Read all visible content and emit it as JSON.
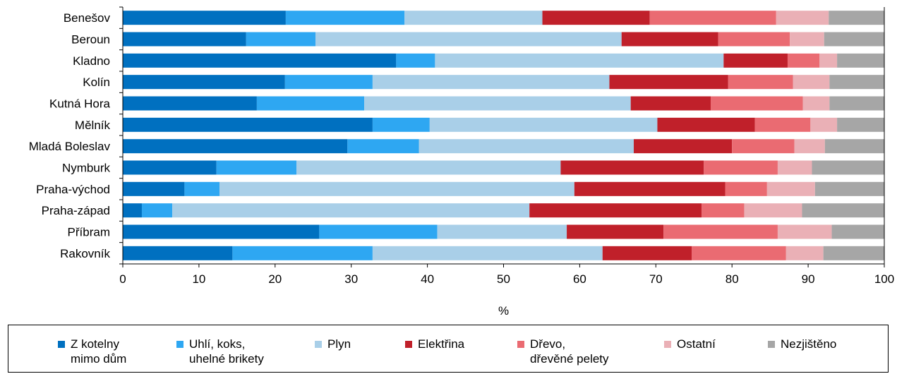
{
  "chart_data": {
    "type": "bar",
    "orientation": "horizontal",
    "stacked": true,
    "xlabel": "%",
    "xlim": [
      0,
      100
    ],
    "x_ticks": [
      "0",
      "10",
      "20",
      "30",
      "40",
      "50",
      "60",
      "70",
      "80",
      "90",
      "100"
    ],
    "grid": false,
    "legend_position": "bottom",
    "categories": [
      "Benešov",
      "Beroun",
      "Kladno",
      "Kolín",
      "Kutná Hora",
      "Mělník",
      "Mladá Boleslav",
      "Nymburk",
      "Praha-východ",
      "Praha-západ",
      "Příbram",
      "Rakovník"
    ],
    "series": [
      {
        "name": "Z kotelny\nmimo dům",
        "color": "#0070c0",
        "values": [
          21.4,
          16.2,
          35.9,
          21.3,
          17.6,
          32.8,
          29.5,
          12.3,
          8.1,
          2.5,
          25.8,
          14.4
        ]
      },
      {
        "name": "Uhlí, koks,\nuhelné brikety",
        "color": "#2ea7f2",
        "values": [
          15.6,
          9.1,
          5.1,
          11.5,
          14.1,
          7.5,
          9.4,
          10.5,
          4.6,
          4.0,
          15.5,
          18.4
        ]
      },
      {
        "name": "Plyn",
        "color": "#a9cfe8",
        "values": [
          18.1,
          40.2,
          37.9,
          31.1,
          35.0,
          29.9,
          28.2,
          34.7,
          46.6,
          46.9,
          17.0,
          30.2
        ]
      },
      {
        "name": "Elektřina",
        "color": "#c0202a",
        "values": [
          14.1,
          12.7,
          8.4,
          15.6,
          10.5,
          12.8,
          12.9,
          18.8,
          19.8,
          22.6,
          12.7,
          11.7
        ]
      },
      {
        "name": "Dřevo,\ndřevěné pelety",
        "color": "#ea6b72",
        "values": [
          16.6,
          9.4,
          4.2,
          8.5,
          12.1,
          7.3,
          8.2,
          9.7,
          5.5,
          5.6,
          15.0,
          12.4
        ]
      },
      {
        "name": "Ostatní",
        "color": "#eab0b6",
        "values": [
          6.9,
          4.5,
          2.3,
          4.8,
          3.5,
          3.5,
          4.0,
          4.5,
          6.3,
          7.6,
          7.1,
          4.9
        ]
      },
      {
        "name": "Nezjištěno",
        "color": "#a6a6a6",
        "values": [
          7.3,
          7.9,
          6.2,
          7.2,
          7.2,
          6.2,
          7.8,
          9.5,
          9.1,
          10.8,
          6.9,
          8.0
        ]
      }
    ]
  }
}
